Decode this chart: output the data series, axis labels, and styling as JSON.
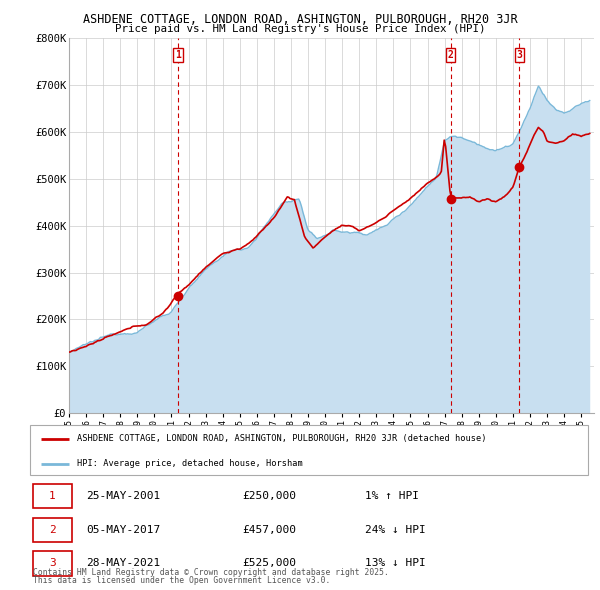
{
  "title_line1": "ASHDENE COTTAGE, LONDON ROAD, ASHINGTON, PULBOROUGH, RH20 3JR",
  "title_line2": "Price paid vs. HM Land Registry's House Price Index (HPI)",
  "ylim": [
    0,
    800000
  ],
  "yticks": [
    0,
    100000,
    200000,
    300000,
    400000,
    500000,
    600000,
    700000,
    800000
  ],
  "ytick_labels": [
    "£0",
    "£100K",
    "£200K",
    "£300K",
    "£400K",
    "£500K",
    "£600K",
    "£700K",
    "£800K"
  ],
  "xlim_start": 1995.0,
  "xlim_end": 2025.75,
  "hpi_color": "#7ab8d9",
  "hpi_fill_color": "#c8dff0",
  "price_color": "#cc0000",
  "transactions": [
    {
      "label": "1",
      "year": 2001.38,
      "price": 250000,
      "date": "25-MAY-2001",
      "pct": "1% ↑ HPI"
    },
    {
      "label": "2",
      "year": 2017.35,
      "price": 457000,
      "date": "05-MAY-2017",
      "pct": "24% ↓ HPI"
    },
    {
      "label": "3",
      "year": 2021.38,
      "price": 525000,
      "date": "28-MAY-2021",
      "pct": "13% ↓ HPI"
    }
  ],
  "legend_house_label": "ASHDENE COTTAGE, LONDON ROAD, ASHINGTON, PULBOROUGH, RH20 3JR (detached house)",
  "legend_hpi_label": "HPI: Average price, detached house, Horsham",
  "footer_line1": "Contains HM Land Registry data © Crown copyright and database right 2025.",
  "footer_line2": "This data is licensed under the Open Government Licence v3.0.",
  "background_color": "#ffffff",
  "plot_bg_color": "#ffffff",
  "grid_color": "#cccccc"
}
